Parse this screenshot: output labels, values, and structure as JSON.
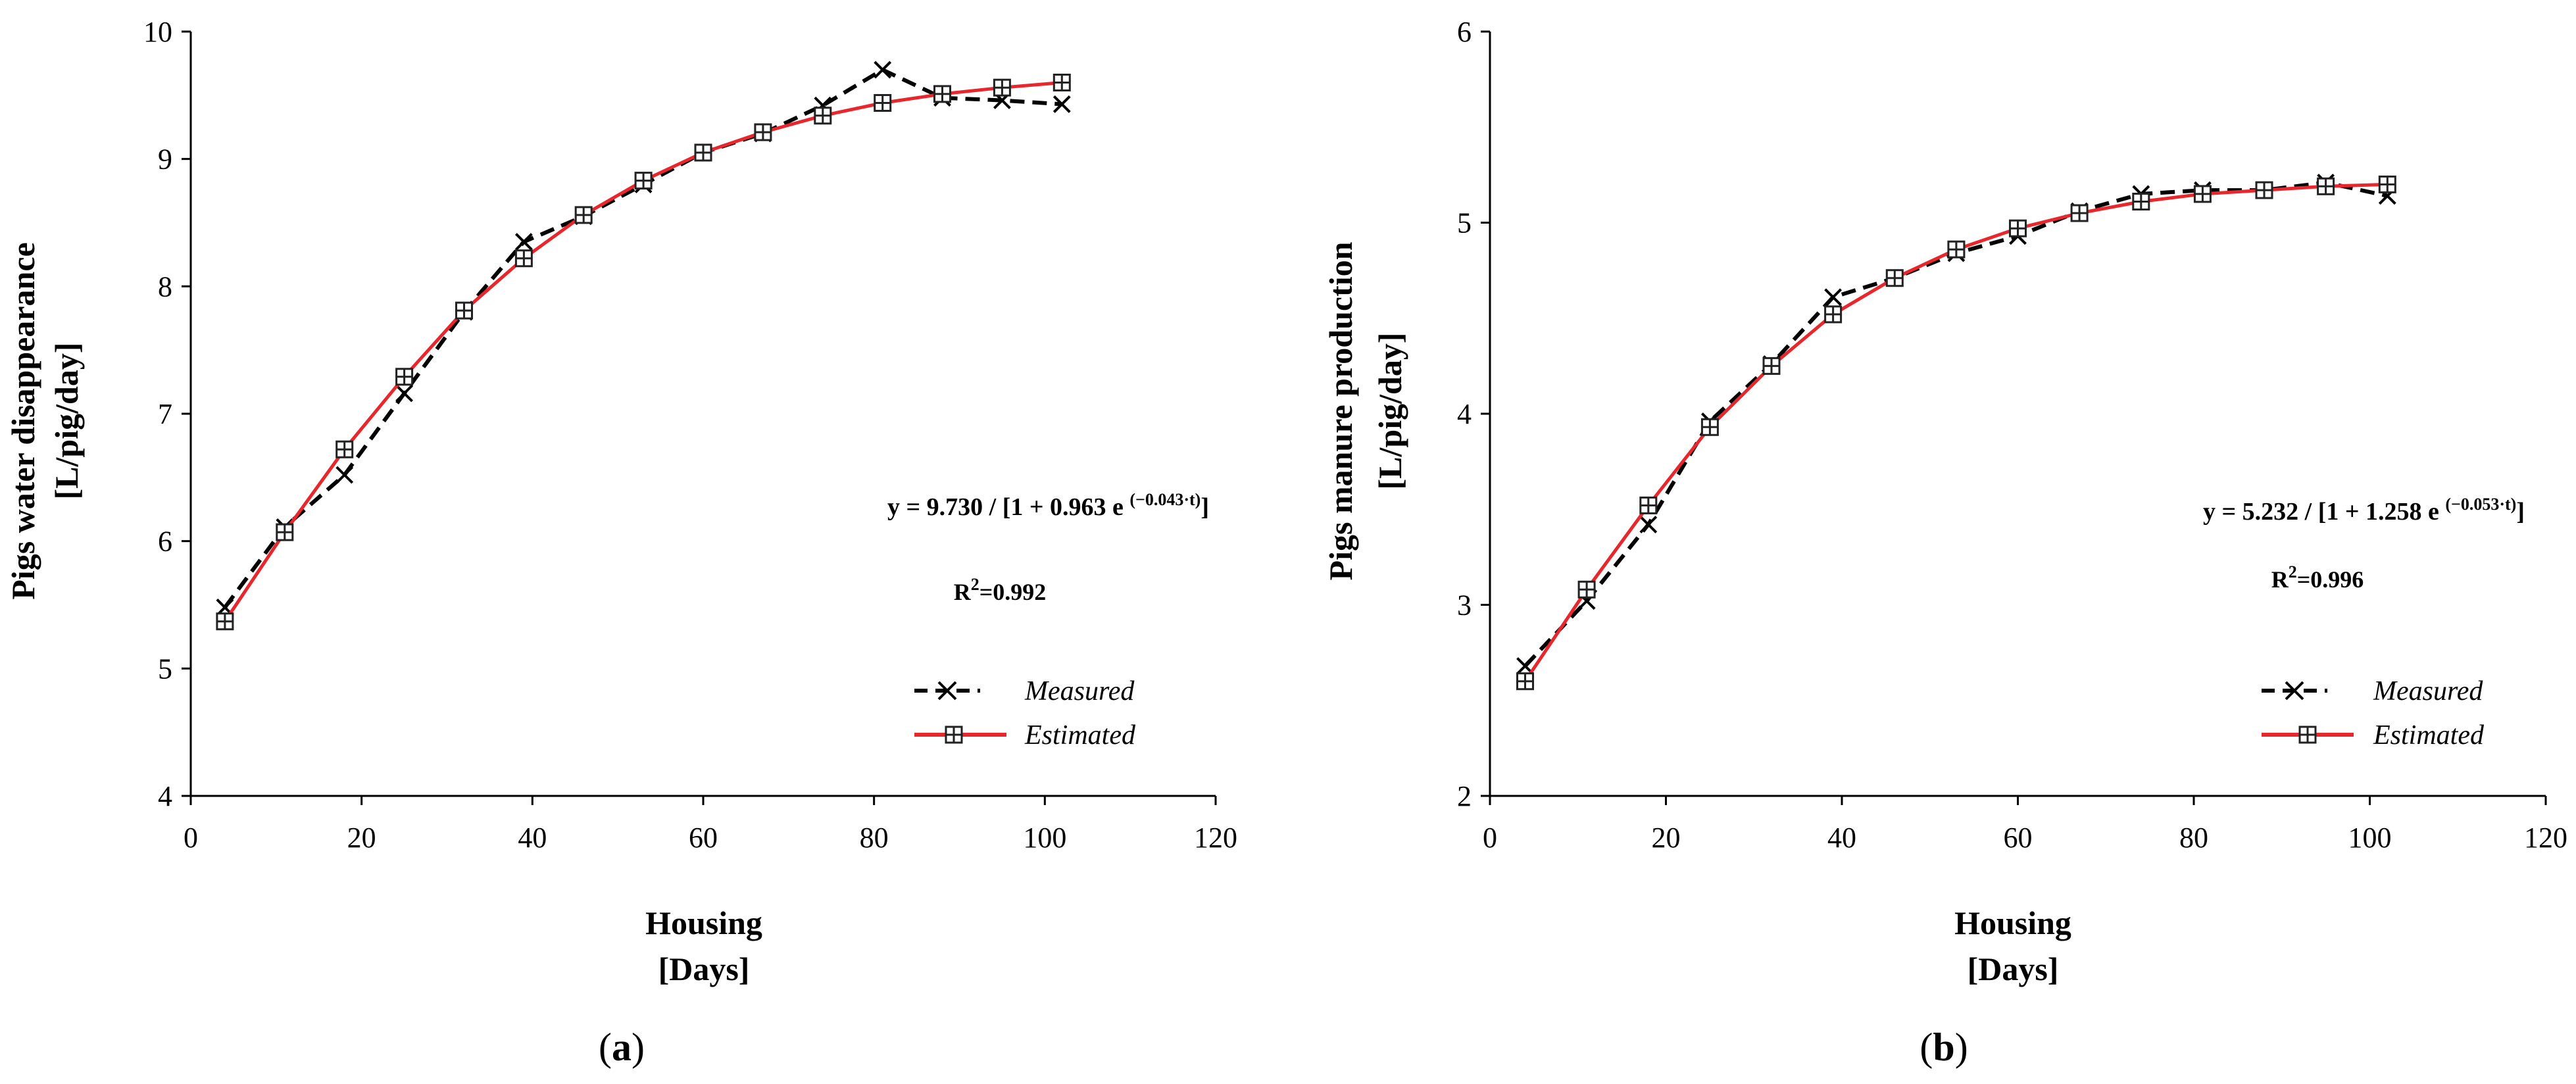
{
  "chart_data": [
    {
      "type": "line",
      "panel_label": "a",
      "xlabel": "Housing",
      "xlabel_unit": "[Days]",
      "ylabel": "Pigs water disappearance",
      "ylabel_unit": "[L/pig/day]",
      "xlim": [
        0,
        120
      ],
      "ylim": [
        4,
        10
      ],
      "xticks": [
        0,
        20,
        40,
        60,
        80,
        100,
        120
      ],
      "yticks": [
        4,
        5,
        6,
        7,
        8,
        9,
        10
      ],
      "grid": false,
      "legend_position": "bottom-right",
      "equation": {
        "main": "y = 9.730 / [1 + 0.963 e ",
        "exponent": "(−0.043·t)",
        "close": "]"
      },
      "r2": {
        "prefix": "R",
        "power": "2",
        "value": "=0.992"
      },
      "series": [
        {
          "name": "Measured",
          "style": "dashed",
          "color": "#000000",
          "marker": "x",
          "x": [
            4,
            11,
            18,
            25,
            32,
            39,
            46,
            53,
            60,
            67,
            74,
            81,
            88,
            95,
            102
          ],
          "y": [
            5.48,
            6.11,
            6.52,
            7.16,
            7.8,
            8.35,
            8.55,
            8.8,
            9.05,
            9.2,
            9.42,
            9.7,
            9.48,
            9.46,
            9.43
          ]
        },
        {
          "name": "Estimated",
          "style": "solid",
          "color": "#e8262b",
          "marker": "square-grid",
          "x": [
            4,
            11,
            18,
            25,
            32,
            39,
            46,
            53,
            60,
            67,
            74,
            81,
            88,
            95,
            102
          ],
          "y": [
            5.37,
            6.07,
            6.72,
            7.29,
            7.81,
            8.22,
            8.56,
            8.83,
            9.05,
            9.21,
            9.34,
            9.44,
            9.51,
            9.56,
            9.6
          ]
        }
      ]
    },
    {
      "type": "line",
      "panel_label": "b",
      "xlabel": "Housing",
      "xlabel_unit": "[Days]",
      "ylabel": "Pigs manure production",
      "ylabel_unit": "[L/pig/day]",
      "xlim": [
        0,
        120
      ],
      "ylim": [
        2,
        6
      ],
      "xticks": [
        0,
        20,
        40,
        60,
        80,
        100,
        120
      ],
      "yticks": [
        2,
        3,
        4,
        5,
        6
      ],
      "grid": false,
      "legend_position": "bottom-right",
      "equation": {
        "main": "y = 5.232 / [1 + 1.258 e ",
        "exponent": "(−0.053·t)",
        "close": "]"
      },
      "r2": {
        "prefix": "R",
        "power": "2",
        "value": "=0.996"
      },
      "series": [
        {
          "name": "Measured",
          "style": "dashed",
          "color": "#000000",
          "marker": "x",
          "x": [
            4,
            11,
            18,
            25,
            32,
            39,
            46,
            53,
            60,
            67,
            74,
            81,
            88,
            95,
            102
          ],
          "y": [
            2.68,
            3.02,
            3.42,
            3.96,
            4.26,
            4.61,
            4.71,
            4.84,
            4.93,
            5.06,
            5.15,
            5.17,
            5.17,
            5.21,
            5.14
          ]
        },
        {
          "name": "Estimated",
          "style": "solid",
          "color": "#e8262b",
          "marker": "square-grid",
          "x": [
            4,
            11,
            18,
            25,
            32,
            39,
            46,
            53,
            60,
            67,
            74,
            81,
            88,
            95,
            102
          ],
          "y": [
            2.6,
            3.08,
            3.52,
            3.93,
            4.25,
            4.52,
            4.71,
            4.86,
            4.97,
            5.05,
            5.11,
            5.15,
            5.17,
            5.19,
            5.2
          ]
        }
      ]
    }
  ]
}
